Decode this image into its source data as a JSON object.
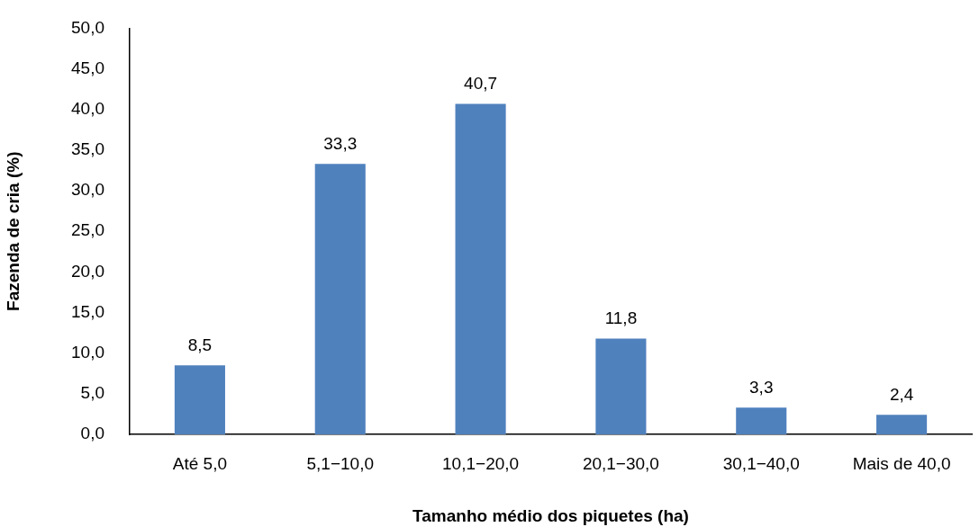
{
  "chart_data": {
    "type": "bar",
    "xlabel": "Tamanho médio dos piquetes (ha)",
    "ylabel": "Fazenda de cria (%)",
    "categories": [
      "Até 5,0",
      "5,1−10,0",
      "10,1−20,0",
      "20,1−30,0",
      "30,1−40,0",
      "Mais de 40,0"
    ],
    "values": [
      8.5,
      33.3,
      40.7,
      11.8,
      3.3,
      2.4
    ],
    "color": "#4f81bd",
    "value_labels": [
      "8,5",
      "33,3",
      "40,7",
      "11,8",
      "3,3",
      "2,4"
    ],
    "ylim": [
      0,
      50
    ],
    "yticks": [
      {
        "value": 0,
        "label": "0,0"
      },
      {
        "value": 5,
        "label": "5,0"
      },
      {
        "value": 10,
        "label": "10,0"
      },
      {
        "value": 15,
        "label": "15,0"
      },
      {
        "value": 20,
        "label": "20,0"
      },
      {
        "value": 25,
        "label": "25,0"
      },
      {
        "value": 30,
        "label": "30,0"
      },
      {
        "value": 35,
        "label": "35,0"
      },
      {
        "value": 40,
        "label": "40,0"
      },
      {
        "value": 45,
        "label": "45,0"
      },
      {
        "value": 50,
        "label": "50,0"
      }
    ]
  }
}
